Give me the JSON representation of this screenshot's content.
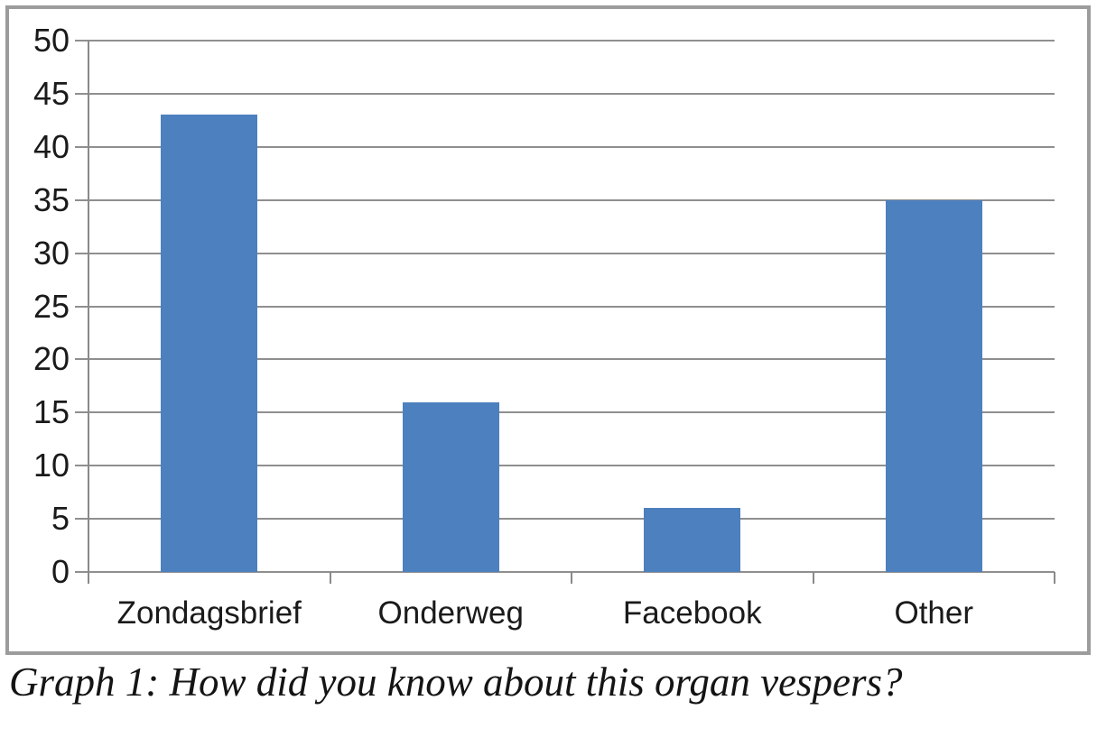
{
  "chart_data": {
    "type": "bar",
    "title": "",
    "xlabel": "",
    "ylabel": "",
    "categories": [
      "Zondagsbrief",
      "Onderweg",
      "Facebook",
      "Other"
    ],
    "values": [
      43,
      16,
      6,
      35
    ],
    "ylim": [
      0,
      50
    ],
    "ytick_step": 5,
    "yticks": [
      0,
      5,
      10,
      15,
      20,
      25,
      30,
      35,
      40,
      45,
      50
    ],
    "grid": "horizontal",
    "legend": "none",
    "bar_color": "#4d80be"
  },
  "caption": "Graph 1: How did you know about this organ vespers?",
  "colors": {
    "frame_border": "#9c9c9c",
    "gridline": "#8f8f8f",
    "axis": "#8a8a8a",
    "text": "#1a1a1a",
    "background": "#ffffff"
  }
}
